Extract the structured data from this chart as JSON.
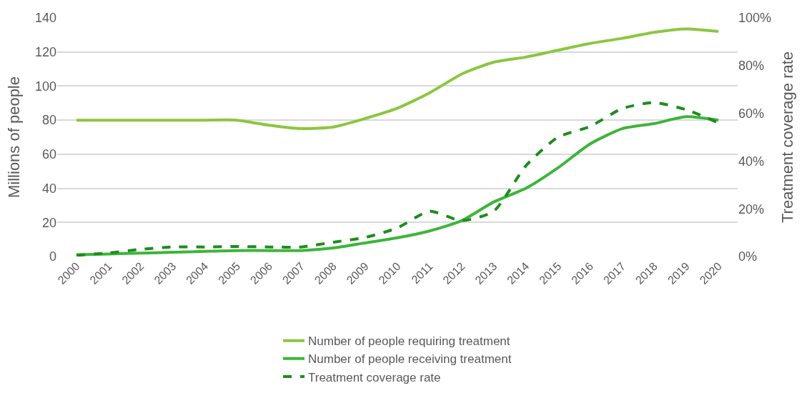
{
  "chart_data": {
    "type": "line",
    "ylabel": "Millions of people",
    "y2label": "Treatment coverage rate",
    "categories": [
      "2000",
      "2001",
      "2002",
      "2003",
      "2004",
      "2005",
      "2006",
      "2007",
      "2008",
      "2009",
      "2010",
      "2011",
      "2012",
      "2013",
      "2014",
      "2015",
      "2016",
      "2017",
      "2018",
      "2019",
      "2020"
    ],
    "series": [
      {
        "name": "Number of people requiring treatment",
        "color": "#8cc63f",
        "line_style": "solid",
        "values": [
          80,
          80,
          80,
          80,
          80,
          80,
          77,
          75,
          76,
          81,
          87,
          96,
          107,
          114,
          117,
          121,
          125,
          128,
          131.5,
          133.5,
          132
        ]
      },
      {
        "name": "Number of people receiving treatment",
        "color": "#3db53a",
        "line_style": "solid",
        "values": [
          1,
          1.5,
          2,
          2.5,
          3,
          3.5,
          3.5,
          3.5,
          5,
          8,
          11,
          15,
          21,
          32,
          40,
          52,
          66,
          75,
          78,
          82,
          80
        ]
      },
      {
        "name": "Treatment coverage rate",
        "color": "#1e8c1e",
        "line_style": "dashed",
        "axis": "y2",
        "values": [
          0.5,
          1.5,
          3,
          4,
          4,
          4.2,
          4,
          4,
          6,
          8,
          12,
          19,
          15,
          19,
          38,
          50,
          54.5,
          62,
          64.5,
          61.5,
          56
        ]
      }
    ],
    "ylim": [
      0,
      140
    ],
    "yticks": [
      0,
      20,
      40,
      60,
      80,
      100,
      120,
      140
    ],
    "y2lim": [
      0,
      100
    ],
    "y2ticks": [
      {
        "value": 0,
        "label": "0%"
      },
      {
        "value": 20,
        "label": "20%"
      },
      {
        "value": 40,
        "label": "40%"
      },
      {
        "value": 60,
        "label": "60%"
      },
      {
        "value": 80,
        "label": "80%"
      },
      {
        "value": 100,
        "label": "100%"
      }
    ],
    "grid": "y",
    "legend": "bottom"
  }
}
